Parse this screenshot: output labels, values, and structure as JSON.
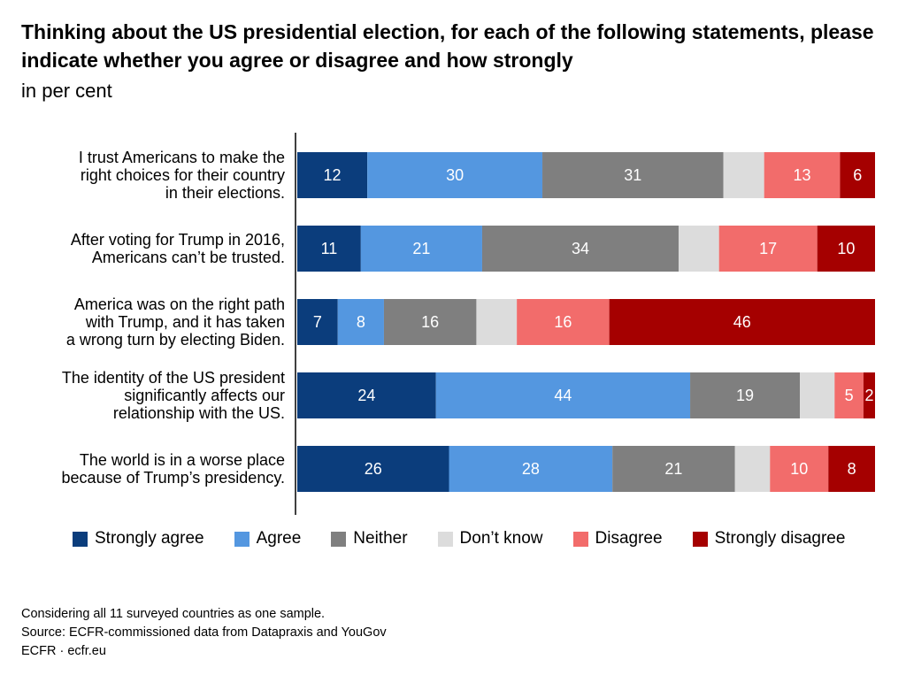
{
  "chart_data": {
    "type": "bar",
    "orientation": "horizontal",
    "stacked": true,
    "title": "Thinking about the US presidential election, for each of the following statements, please indicate whether you agree or disagree and how strongly",
    "subtitle": "in per cent",
    "xlim": [
      0,
      100
    ],
    "categories": [
      [
        "I trust Americans to make the",
        "right choices for their country",
        "in their elections."
      ],
      [
        "After voting for Trump in 2016,",
        "Americans can’t be trusted."
      ],
      [
        "America was on the right path",
        "with Trump, and it has taken",
        "a wrong turn by electing Biden."
      ],
      [
        "The identity of the US president",
        "significantly affects our",
        "relationship with the US."
      ],
      [
        "The world is in a worse place",
        "because of Trump’s presidency."
      ]
    ],
    "series": [
      {
        "name": "Strongly agree",
        "color": "#0b3d7c",
        "values": [
          12,
          11,
          7,
          24,
          26
        ],
        "show_labels": true
      },
      {
        "name": "Agree",
        "color": "#5497e0",
        "values": [
          30,
          21,
          8,
          44,
          28
        ],
        "show_labels": true
      },
      {
        "name": "Neither",
        "color": "#7f7f7f",
        "values": [
          31,
          34,
          16,
          19,
          21
        ],
        "show_labels": true
      },
      {
        "name": "Don’t know",
        "color": "#dcdcdc",
        "values": [
          7,
          7,
          7,
          6,
          6
        ],
        "show_labels": false
      },
      {
        "name": "Disagree",
        "color": "#f26c6b",
        "values": [
          13,
          17,
          16,
          5,
          10
        ],
        "show_labels": true
      },
      {
        "name": "Strongly disagree",
        "color": "#a50000",
        "values": [
          6,
          10,
          46,
          2,
          8
        ],
        "show_labels": true
      }
    ],
    "legend": "bottom",
    "grid": false
  },
  "footer": {
    "note": "Considering all 11 surveyed countries as one sample.",
    "source": "Source: ECFR-commissioned data from Datapraxis and YouGov",
    "credit": "ECFR · ecfr.eu"
  }
}
